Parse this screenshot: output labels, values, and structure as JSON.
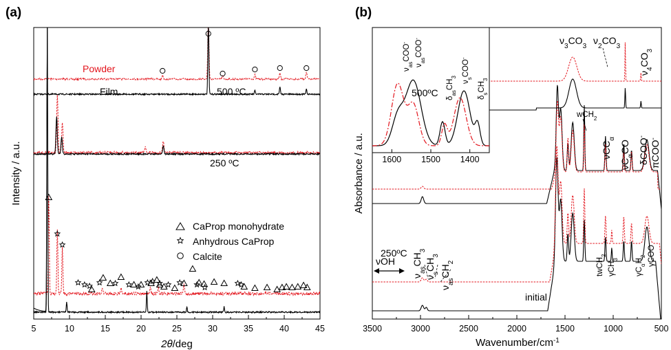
{
  "panel_a": {
    "label": "(a)",
    "xlabel_var": "2θ",
    "xlabel_unit": "/deg",
    "ylabel": "Intensity / a.u.",
    "legend": [
      {
        "marker": "triangle",
        "text": "CaProp monohydrate"
      },
      {
        "marker": "star",
        "text": "Anhydrous CaProp"
      },
      {
        "marker": "circle",
        "text": "Calcite"
      }
    ],
    "annotations": {
      "powder": "Powder",
      "film": "Film",
      "t500": "500 ºC",
      "t250": "250 ºC"
    }
  },
  "panel_b": {
    "label": "(b)",
    "xlabel": "Wavenumber/cm",
    "xlabel_sup": "-1",
    "ylabel": "Absorbance / a.u.",
    "annotations": {
      "t500": "500ºC",
      "t250": "250ºC",
      "initial": "initial",
      "voh": "νOH",
      "v3co3": "ν3CO3",
      "v2co3": "ν2CO3",
      "v4co3": "ν4CO3",
      "wch2": "wCH2",
      "vcca": "νCCα",
      "vcaco": "νCαCO",
      "dcoo": "δCOO⁻",
      "picoo": "πCOO⁻",
      "vasch3": "νasCH3",
      "vsch3": "νsCH3",
      "vasch2": "νasCH2",
      "twch2": "twCH2",
      "gch3": "γCH3",
      "gcah2": "γCαH2",
      "gcoo": "γCOO⁻"
    },
    "inset_annotations": {
      "vascoo1": "νasCOO⁻",
      "vascoo2": "νasCOO⁻",
      "dasch3": "δasCH3",
      "vscoo": "νsCOO⁻",
      "dsch3": "δsCH3"
    }
  },
  "chart_data": [
    {
      "type": "line",
      "title": "(a)",
      "xlabel": "2θ/deg",
      "ylabel": "Intensity / a.u.",
      "xlim": [
        5,
        45
      ],
      "xticks": [
        5,
        10,
        15,
        20,
        25,
        30,
        35,
        40,
        45
      ],
      "colors": {
        "powder": "#e3141c",
        "film": "#000000"
      },
      "series": [
        {
          "name": "Powder",
          "temperature": "500 ºC",
          "peaks_2theta": [
            23.0,
            29.4,
            31.4,
            35.9,
            39.4,
            43.1
          ]
        },
        {
          "name": "Film",
          "temperature": "500 ºC",
          "peaks_2theta": [
            29.4,
            35.9,
            39.4,
            43.1
          ]
        },
        {
          "name": "Powder",
          "temperature": "250 ºC",
          "peaks_2theta": [
            8.3,
            9.0,
            20.6,
            23.1
          ]
        },
        {
          "name": "Film",
          "temperature": "250 ºC",
          "peaks_2theta": [
            8.2,
            8.9,
            23.1
          ]
        },
        {
          "name": "Powder",
          "temperature": "initial",
          "peaks_2theta": [
            7.1,
            8.3,
            9.0,
            14.6,
            17.2,
            21.3,
            22.4,
            26.0
          ]
        },
        {
          "name": "Film",
          "temperature": "initial",
          "peaks_2theta": [
            6.9,
            9.6,
            20.8,
            26.4,
            31.6
          ]
        }
      ],
      "markers": {
        "calcite": [
          23.0,
          29.4,
          31.4,
          35.9,
          39.4,
          43.1
        ],
        "anhydrous": [
          8.3,
          9.0,
          11.2,
          12.1,
          12.8,
          14.2,
          16.4,
          18.3,
          19.6,
          20.9,
          21.6,
          22.6,
          23.8,
          25.4,
          27.8,
          28.9,
          33.5,
          34.0
        ],
        "monohydrate": [
          7.1,
          13.1,
          14.7,
          15.7,
          17.2,
          19.0,
          20.0,
          21.4,
          22.2,
          22.6,
          23.2,
          24.7,
          26.0,
          27.2,
          28.1,
          28.8,
          30.2,
          31.6,
          34.4,
          35.9,
          37.6,
          39.0,
          39.7,
          40.3,
          41.1,
          41.9,
          42.7,
          43.2
        ]
      }
    },
    {
      "type": "line",
      "title": "(b)",
      "xlabel": "Wavenumber/cm-1",
      "ylabel": "Absorbance / a.u.",
      "xlim": [
        3500,
        500
      ],
      "xticks": [
        3500,
        3000,
        2500,
        2000,
        1500,
        1000,
        500
      ],
      "series": [
        {
          "name": "initial",
          "bands_cm1": [
            2980,
            2940,
            1585,
            1545,
            1470,
            1420,
            1300,
            1080,
            1015,
            890,
            810,
            650
          ]
        },
        {
          "name": "250ºC",
          "bands_cm1": [
            2980,
            1580,
            1545,
            1470,
            1420,
            1300,
            1080,
            890,
            810,
            650
          ]
        },
        {
          "name": "500ºC",
          "bands_cm1": [
            1420,
            875,
            712
          ]
        }
      ],
      "inset": {
        "xlim": [
          1650,
          1350
        ],
        "xticks": [
          1600,
          1500,
          1400
        ]
      }
    }
  ]
}
